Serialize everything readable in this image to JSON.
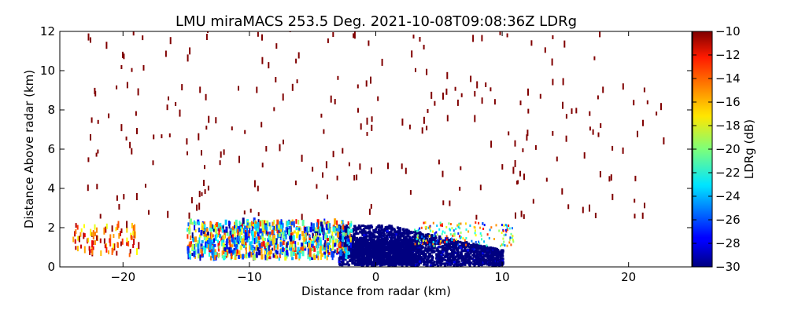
{
  "chart_data": {
    "type": "heatmap",
    "title": "LMU miraMACS 253.5 Deg. 2021-10-08T09:08:36Z  LDRg",
    "xlabel": "Distance from radar (km)",
    "ylabel": "Distance Above radar  (km)",
    "xlim": [
      -25,
      25
    ],
    "ylim": [
      0,
      12
    ],
    "xticks": [
      -20,
      -10,
      0,
      10,
      20
    ],
    "xtick_labels": [
      "−20",
      "−10",
      "0",
      "10",
      "20"
    ],
    "yticks": [
      0,
      2,
      4,
      6,
      8,
      10,
      12
    ],
    "ytick_labels": [
      "0",
      "2",
      "4",
      "6",
      "8",
      "10",
      "12"
    ],
    "grid": false,
    "colorbar": {
      "label": "LDRg (dB)",
      "range": [
        -30,
        -10
      ],
      "ticks": [
        -10,
        -12,
        -14,
        -16,
        -18,
        -20,
        -22,
        -24,
        -26,
        -28,
        -30
      ],
      "tick_labels": [
        "−10",
        "−12",
        "−14",
        "−16",
        "−18",
        "−20",
        "−22",
        "−24",
        "−26",
        "−28",
        "−30"
      ],
      "colormap": "jet"
    },
    "regions": [
      {
        "name": "near-field dense echo",
        "x_range": [
          -3,
          10
        ],
        "y_range": [
          0,
          2
        ],
        "ldr": -30
      },
      {
        "name": "low-level mixed echo",
        "x_range": [
          -15,
          10
        ],
        "y_range": [
          0,
          2.2
        ],
        "ldr_range": [
          -30,
          -12
        ]
      },
      {
        "name": "far-left low echo",
        "x_range": [
          -24,
          -19
        ],
        "y_range": [
          0.5,
          2
        ],
        "ldr_range": [
          -18,
          -10
        ]
      },
      {
        "name": "sparse high-LDR gates aloft",
        "x_range": [
          -23,
          23
        ],
        "y_range": [
          2,
          12
        ],
        "ldr": -10
      }
    ]
  },
  "colors": {
    "background": "#ffffff",
    "axes": "#000000"
  }
}
